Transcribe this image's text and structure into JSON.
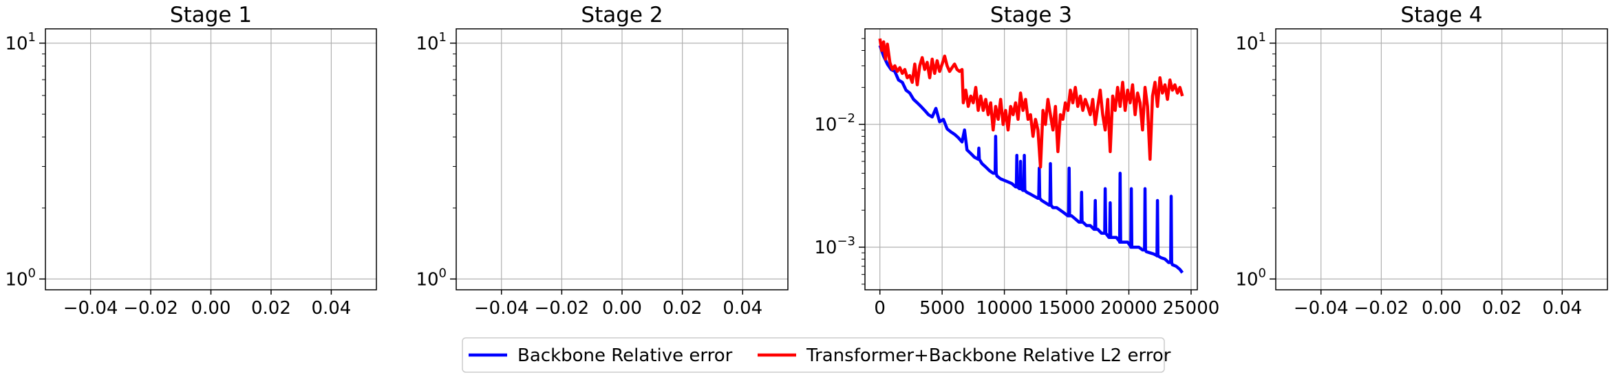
{
  "figure": {
    "legend": [
      {
        "label": "Backbone Relative error",
        "color": "#0000ff"
      },
      {
        "label": "Transformer+Backbone Relative L2 error",
        "color": "#ff0000"
      }
    ],
    "legend_placement": "bottom-center"
  },
  "chart_data": [
    {
      "type": "line",
      "title": "Stage 1",
      "xlabel": "",
      "ylabel": "",
      "x_ticks": [
        "−0.04",
        "−0.02",
        "0.00",
        "0.02",
        "0.04"
      ],
      "xlim": [
        -0.055,
        0.055
      ],
      "y_scale": "log",
      "ylim": [
        0.9,
        11.5
      ],
      "y_ticks": [
        {
          "base": "10",
          "exp": "0",
          "value": 1
        },
        {
          "base": "10",
          "exp": "1",
          "value": 10
        }
      ],
      "grid": true,
      "series": []
    },
    {
      "type": "line",
      "title": "Stage 2",
      "xlabel": "",
      "ylabel": "",
      "x_ticks": [
        "−0.04",
        "−0.02",
        "0.00",
        "0.02",
        "0.04"
      ],
      "xlim": [
        -0.055,
        0.055
      ],
      "y_scale": "log",
      "ylim": [
        0.9,
        11.5
      ],
      "y_ticks": [
        {
          "base": "10",
          "exp": "0",
          "value": 1
        },
        {
          "base": "10",
          "exp": "1",
          "value": 10
        }
      ],
      "grid": true,
      "series": []
    },
    {
      "type": "line",
      "title": "Stage 3",
      "xlabel": "",
      "ylabel": "",
      "x_ticks": [
        "0",
        "5000",
        "10000",
        "15000",
        "20000",
        "25000"
      ],
      "xlim": [
        -1200,
        25500
      ],
      "y_scale": "log",
      "ylim": [
        0.00045,
        0.06
      ],
      "y_ticks": [
        {
          "base": "10",
          "exp": "−3",
          "value": 0.001
        },
        {
          "base": "10",
          "exp": "−2",
          "value": 0.01
        }
      ],
      "grid": true,
      "series": [
        {
          "name": "Backbone Relative error",
          "color": "#0000ff",
          "points": [
            [
              0,
              0.044
            ],
            [
              300,
              0.036
            ],
            [
              600,
              0.031
            ],
            [
              900,
              0.028
            ],
            [
              1200,
              0.027
            ],
            [
              1500,
              0.023
            ],
            [
              1800,
              0.022
            ],
            [
              2100,
              0.019
            ],
            [
              2400,
              0.018
            ],
            [
              2700,
              0.016
            ],
            [
              3000,
              0.015
            ],
            [
              3300,
              0.014
            ],
            [
              3600,
              0.013
            ],
            [
              3900,
              0.012
            ],
            [
              4200,
              0.0115
            ],
            [
              4500,
              0.0135
            ],
            [
              4800,
              0.0105
            ],
            [
              5100,
              0.011
            ],
            [
              5400,
              0.0092
            ],
            [
              5700,
              0.0087
            ],
            [
              6000,
              0.0083
            ],
            [
              6300,
              0.0078
            ],
            [
              6600,
              0.0072
            ],
            [
              6800,
              0.009
            ],
            [
              7000,
              0.0062
            ],
            [
              7300,
              0.0058
            ],
            [
              7600,
              0.0054
            ],
            [
              7900,
              0.0052
            ],
            [
              8200,
              0.0048
            ],
            [
              8500,
              0.0045
            ],
            [
              8800,
              0.0042
            ],
            [
              9100,
              0.004
            ],
            [
              9400,
              0.0038
            ],
            [
              9700,
              0.0036
            ],
            [
              10000,
              0.0035
            ],
            [
              10300,
              0.0034
            ],
            [
              10600,
              0.0033
            ],
            [
              10900,
              0.0031
            ],
            [
              11200,
              0.003
            ],
            [
              11500,
              0.0029
            ],
            [
              11800,
              0.0028
            ],
            [
              12100,
              0.0027
            ],
            [
              12400,
              0.0026
            ],
            [
              12700,
              0.0025
            ],
            [
              13000,
              0.0024
            ],
            [
              13300,
              0.0023
            ],
            [
              13600,
              0.0022
            ],
            [
              13900,
              0.0021
            ],
            [
              14200,
              0.0021
            ],
            [
              14500,
              0.002
            ],
            [
              14800,
              0.0019
            ],
            [
              15100,
              0.0018
            ],
            [
              15400,
              0.0018
            ],
            [
              15700,
              0.0017
            ],
            [
              16000,
              0.0016
            ],
            [
              16300,
              0.0016
            ],
            [
              16600,
              0.0015
            ],
            [
              16900,
              0.0015
            ],
            [
              17200,
              0.0014
            ],
            [
              17500,
              0.0014
            ],
            [
              17800,
              0.0013
            ],
            [
              18100,
              0.0013
            ],
            [
              18400,
              0.0012
            ],
            [
              18700,
              0.0012
            ],
            [
              19000,
              0.0012
            ],
            [
              19300,
              0.0011
            ],
            [
              19600,
              0.0011
            ],
            [
              19900,
              0.0011
            ],
            [
              20200,
              0.001
            ],
            [
              20500,
              0.001
            ],
            [
              20800,
              0.001
            ],
            [
              21100,
              0.00095
            ],
            [
              21400,
              0.00092
            ],
            [
              21700,
              0.0009
            ],
            [
              22000,
              0.00088
            ],
            [
              22300,
              0.00085
            ],
            [
              22600,
              0.00082
            ],
            [
              22900,
              0.0008
            ],
            [
              23200,
              0.00075
            ],
            [
              23500,
              0.00072
            ],
            [
              23800,
              0.0007
            ],
            [
              24100,
              0.00066
            ],
            [
              24300,
              0.00062
            ]
          ],
          "spikes": [
            [
              7950,
              0.0064
            ],
            [
              9300,
              0.008
            ],
            [
              11000,
              0.0056
            ],
            [
              11300,
              0.005
            ],
            [
              11600,
              0.0056
            ],
            [
              12800,
              0.0044
            ],
            [
              13700,
              0.0048
            ],
            [
              15200,
              0.0044
            ],
            [
              16200,
              0.0028
            ],
            [
              17300,
              0.0024
            ],
            [
              18100,
              0.003
            ],
            [
              18500,
              0.0023
            ],
            [
              19300,
              0.004
            ],
            [
              20200,
              0.003
            ],
            [
              21300,
              0.003
            ],
            [
              22300,
              0.0024
            ],
            [
              23400,
              0.0026
            ]
          ]
        },
        {
          "name": "Transformer+Backbone Relative L2 error",
          "color": "#ff0000",
          "points": [
            [
              0,
              0.05
            ],
            [
              150,
              0.04
            ],
            [
              300,
              0.047
            ],
            [
              450,
              0.034
            ],
            [
              600,
              0.045
            ],
            [
              800,
              0.032
            ],
            [
              1000,
              0.028
            ],
            [
              1200,
              0.03
            ],
            [
              1400,
              0.027
            ],
            [
              1600,
              0.029
            ],
            [
              1800,
              0.026
            ],
            [
              2000,
              0.028
            ],
            [
              2200,
              0.024
            ],
            [
              2400,
              0.025
            ],
            [
              2600,
              0.022
            ],
            [
              2800,
              0.031
            ],
            [
              3000,
              0.021
            ],
            [
              3200,
              0.03
            ],
            [
              3400,
              0.035
            ],
            [
              3600,
              0.028
            ],
            [
              3800,
              0.032
            ],
            [
              4000,
              0.024
            ],
            [
              4200,
              0.034
            ],
            [
              4400,
              0.026
            ],
            [
              4600,
              0.033
            ],
            [
              4800,
              0.027
            ],
            [
              5000,
              0.031
            ],
            [
              5200,
              0.036
            ],
            [
              5400,
              0.03
            ],
            [
              5600,
              0.027
            ],
            [
              5800,
              0.029
            ],
            [
              6000,
              0.031
            ],
            [
              6200,
              0.028
            ],
            [
              6400,
              0.027
            ],
            [
              6600,
              0.028
            ],
            [
              6700,
              0.015
            ],
            [
              6900,
              0.019
            ],
            [
              7100,
              0.014
            ],
            [
              7300,
              0.017
            ],
            [
              7500,
              0.015
            ],
            [
              7700,
              0.02
            ],
            [
              7900,
              0.013
            ],
            [
              8100,
              0.017
            ],
            [
              8300,
              0.013
            ],
            [
              8500,
              0.016
            ],
            [
              8700,
              0.012
            ],
            [
              8900,
              0.015
            ],
            [
              9100,
              0.009
            ],
            [
              9300,
              0.014
            ],
            [
              9500,
              0.011
            ],
            [
              9700,
              0.016
            ],
            [
              9900,
              0.01
            ],
            [
              10100,
              0.013
            ],
            [
              10300,
              0.009
            ],
            [
              10500,
              0.014
            ],
            [
              10700,
              0.012
            ],
            [
              10900,
              0.015
            ],
            [
              11100,
              0.011
            ],
            [
              11300,
              0.018
            ],
            [
              11500,
              0.013
            ],
            [
              11700,
              0.016
            ],
            [
              11900,
              0.011
            ],
            [
              12100,
              0.012
            ],
            [
              12300,
              0.008
            ],
            [
              12500,
              0.011
            ],
            [
              12700,
              0.009
            ],
            [
              12900,
              0.0045
            ],
            [
              13100,
              0.013
            ],
            [
              13300,
              0.01
            ],
            [
              13500,
              0.016
            ],
            [
              13700,
              0.012
            ],
            [
              13900,
              0.009
            ],
            [
              14100,
              0.014
            ],
            [
              14300,
              0.006
            ],
            [
              14500,
              0.012
            ],
            [
              14700,
              0.011
            ],
            [
              14900,
              0.015
            ],
            [
              15100,
              0.013
            ],
            [
              15300,
              0.019
            ],
            [
              15500,
              0.015
            ],
            [
              15700,
              0.02
            ],
            [
              15900,
              0.014
            ],
            [
              16100,
              0.017
            ],
            [
              16300,
              0.013
            ],
            [
              16500,
              0.016
            ],
            [
              16700,
              0.014
            ],
            [
              16900,
              0.012
            ],
            [
              17100,
              0.016
            ],
            [
              17300,
              0.01
            ],
            [
              17500,
              0.014
            ],
            [
              17700,
              0.019
            ],
            [
              17900,
              0.012
            ],
            [
              18100,
              0.009
            ],
            [
              18300,
              0.016
            ],
            [
              18500,
              0.006
            ],
            [
              18700,
              0.017
            ],
            [
              18900,
              0.013
            ],
            [
              19100,
              0.02
            ],
            [
              19300,
              0.014
            ],
            [
              19500,
              0.022
            ],
            [
              19700,
              0.013
            ],
            [
              19900,
              0.019
            ],
            [
              20100,
              0.015
            ],
            [
              20300,
              0.021
            ],
            [
              20500,
              0.012
            ],
            [
              20700,
              0.018
            ],
            [
              20900,
              0.015
            ],
            [
              21100,
              0.009
            ],
            [
              21300,
              0.02
            ],
            [
              21500,
              0.014
            ],
            [
              21700,
              0.0052
            ],
            [
              21900,
              0.017
            ],
            [
              22100,
              0.022
            ],
            [
              22300,
              0.014
            ],
            [
              22500,
              0.024
            ],
            [
              22700,
              0.018
            ],
            [
              22900,
              0.021
            ],
            [
              23100,
              0.016
            ],
            [
              23300,
              0.023
            ],
            [
              23500,
              0.019
            ],
            [
              23700,
              0.021
            ],
            [
              23900,
              0.018
            ],
            [
              24100,
              0.02
            ],
            [
              24300,
              0.017
            ]
          ]
        }
      ]
    },
    {
      "type": "line",
      "title": "Stage 4",
      "xlabel": "",
      "ylabel": "",
      "x_ticks": [
        "−0.04",
        "−0.02",
        "0.00",
        "0.02",
        "0.04"
      ],
      "xlim": [
        -0.055,
        0.055
      ],
      "y_scale": "log",
      "ylim": [
        0.9,
        11.5
      ],
      "y_ticks": [
        {
          "base": "10",
          "exp": "0",
          "value": 1
        },
        {
          "base": "10",
          "exp": "1",
          "value": 10
        }
      ],
      "grid": true,
      "series": []
    }
  ]
}
